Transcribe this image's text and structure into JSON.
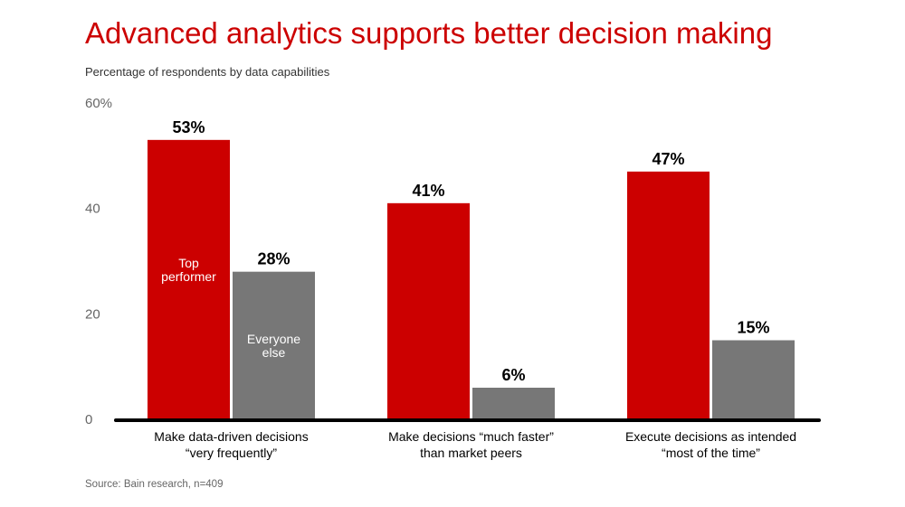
{
  "chart_data": {
    "type": "bar",
    "title": "Advanced analytics supports better decision making",
    "subtitle": "Percentage of respondents by data capabilities",
    "source": "Source: Bain research, n=409",
    "ylim": [
      0,
      60
    ],
    "yticks": [
      "0",
      "20",
      "40",
      "60%"
    ],
    "categories": [
      [
        "Make data-driven decisions",
        "“very frequently”"
      ],
      [
        "Make decisions “much faster”",
        "than market peers"
      ],
      [
        "Execute decisions as intended",
        "“most of the time”"
      ]
    ],
    "series": [
      {
        "name": [
          "Top",
          "performer"
        ],
        "color": "#cc0000",
        "values": [
          53,
          41,
          47
        ],
        "labels": [
          "53%",
          "41%",
          "47%"
        ]
      },
      {
        "name": [
          "Everyone",
          "else"
        ],
        "color": "#777777",
        "values": [
          28,
          6,
          15
        ],
        "labels": [
          "28%",
          "6%",
          "15%"
        ]
      }
    ]
  }
}
